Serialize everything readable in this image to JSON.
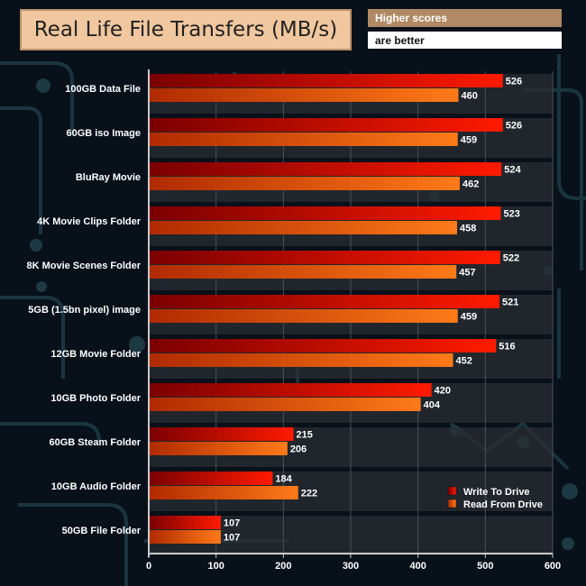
{
  "header": {
    "title": "Real Life File Transfers (MB/s)",
    "note_line1": "Higher scores",
    "note_line2": "are better"
  },
  "chart_data": {
    "type": "bar",
    "orientation": "horizontal",
    "title": "Real Life File Transfers (MB/s)",
    "xlabel": "",
    "ylabel": "",
    "xlim": [
      0,
      600
    ],
    "xticks": [
      0,
      100,
      200,
      300,
      400,
      500,
      600
    ],
    "legend_position": "bottom-right",
    "categories": [
      "100GB Data File",
      "60GB iso Image",
      "BluRay Movie",
      "4K Movie Clips Folder",
      "8K Movie Scenes Folder",
      "5GB (1.5bn pixel) image",
      "12GB Movie Folder",
      "10GB Photo Folder",
      "60GB Steam Folder",
      "10GB Audio Folder",
      "50GB File Folder"
    ],
    "series": [
      {
        "name": "Write To  Drive",
        "color": "#ff1a00",
        "values": [
          526,
          526,
          524,
          523,
          522,
          521,
          516,
          420,
          215,
          184,
          107
        ]
      },
      {
        "name": "Read From  Drive",
        "color": "#ff6a10",
        "values": [
          460,
          459,
          462,
          458,
          457,
          459,
          452,
          404,
          206,
          222,
          107
        ]
      }
    ]
  }
}
